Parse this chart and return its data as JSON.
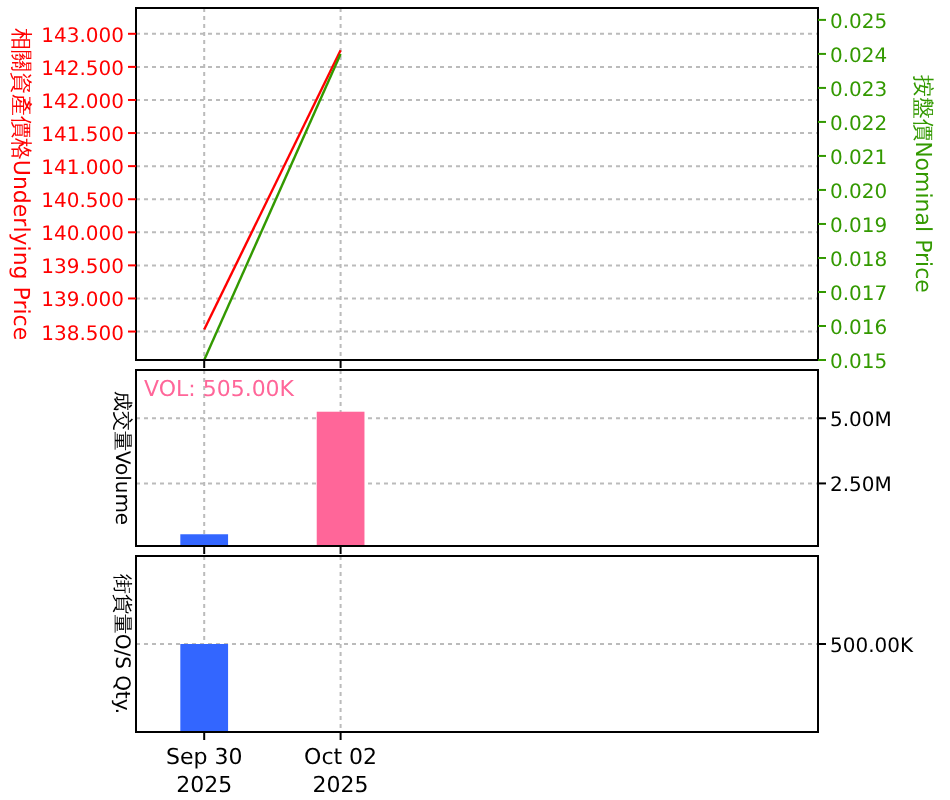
{
  "chart_data": [
    {
      "type": "line",
      "x": [
        "2025-09-30",
        "2025-10-02"
      ],
      "xlim": [
        "2025-09-29",
        "2025-10-09"
      ],
      "xticks": [
        {
          "value": "2025-09-30",
          "label": null
        },
        {
          "value": "2025-10-02",
          "label": null
        }
      ],
      "series": [
        {
          "color": "#ff0000",
          "values": [
            138.53,
            142.75
          ]
        },
        {
          "color": "#339900",
          "axis": "y2",
          "values": [
            0.015,
            0.024
          ]
        }
      ],
      "ylabel": "相關資產價格Underlying Price",
      "y2label": "按盤價Nominal Price",
      "ylim": [
        138.07,
        143.39
      ],
      "yticks": [
        {
          "value": 138.5,
          "label": "138.500"
        },
        {
          "value": 139,
          "label": "139.000"
        },
        {
          "value": 139.5,
          "label": "139.500"
        },
        {
          "value": 140,
          "label": "140.000"
        },
        {
          "value": 140.5,
          "label": "140.500"
        },
        {
          "value": 141,
          "label": "141.000"
        },
        {
          "value": 141.5,
          "label": "141.500"
        },
        {
          "value": 142,
          "label": "142.000"
        },
        {
          "value": 142.5,
          "label": "142.500"
        },
        {
          "value": 143,
          "label": "143.000"
        }
      ],
      "y2lim": [
        0.015,
        0.02535
      ],
      "y2ticks": [
        0.015,
        0.016,
        0.017,
        0.018,
        0.019,
        {
          "value": 0.02,
          "label": "0.020"
        },
        0.021,
        0.022,
        0.023,
        0.024,
        0.025
      ],
      "tick_labels": "y",
      "grid": true
    },
    {
      "type": "bar",
      "x": [
        "2025-09-30",
        "2025-10-02"
      ],
      "xlim": [
        "2025-09-29",
        "2025-10-09"
      ],
      "xticks": [
        {
          "value": "2025-09-30",
          "label": null
        },
        {
          "value": "2025-10-02",
          "label": null
        }
      ],
      "values": [
        550000,
        5250000
      ],
      "colors": [
        "#3366ff",
        "#ff6699"
      ],
      "ylabel": "成交量Volume",
      "ylim": [
        100000,
        6850000
      ],
      "yticks": [
        {
          "value": 2500000,
          "label": "2.50M"
        },
        {
          "value": 5000000,
          "label": "5.00M"
        }
      ],
      "annotations": [
        "VOL: 505.00K"
      ],
      "tick_labels": "y",
      "grid": true
    },
    {
      "type": "bar",
      "xlim": [
        "2025-09-29",
        "2025-10-09"
      ],
      "xticks": [
        {
          "value": "2025-09-30",
          "label": "Sep 30\n2025"
        },
        {
          "value": "2025-10-02",
          "label": "Oct 02\n2025"
        }
      ],
      "x": [
        "2025-09-30"
      ],
      "values": [
        500000
      ],
      "colors": [
        "#3366ff"
      ],
      "ylabel": "街貨量O/S Qty.",
      "ylim": [
        0,
        1000000
      ],
      "yticks": [
        {
          "value": 500000,
          "label": "500.00K"
        }
      ],
      "grid": true
    }
  ]
}
